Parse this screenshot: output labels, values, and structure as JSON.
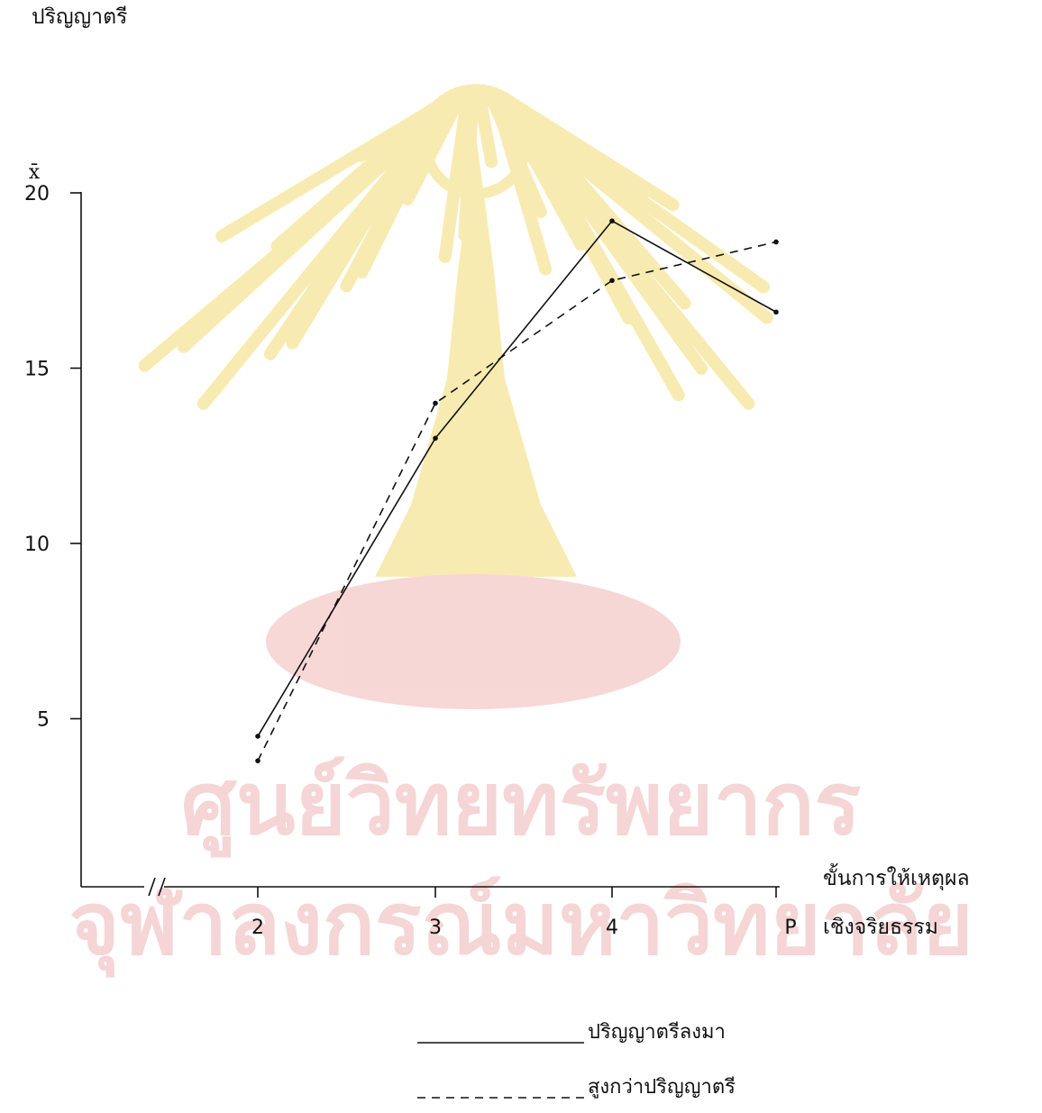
{
  "header_fragment": "ปริญญาตรี",
  "watermark": {
    "line1": "ศูนย์วิทยทรัพยากร",
    "line2": "จุฬาลงกรณ์มหาวิทยาลัย",
    "color": "#e58a8a",
    "emblem_color": "#f3dc74"
  },
  "chart_data": {
    "type": "line",
    "categories": [
      "2",
      "3",
      "4",
      "P"
    ],
    "ylabel": "x̄",
    "xlabel_lines": [
      "ขั้นการให้เหตุผล",
      "เชิงจริยธรรม"
    ],
    "ylim": [
      0,
      20
    ],
    "yticks": [
      5,
      10,
      15,
      20
    ],
    "grid": false,
    "legend_position": "bottom-right",
    "series": [
      {
        "name": "ปริญญาตรีลงมา",
        "style": "solid",
        "values": [
          4.5,
          13.0,
          19.2,
          16.6
        ]
      },
      {
        "name": "สูงกว่าปริญญาตรี",
        "style": "dashed",
        "values": [
          3.8,
          14.0,
          17.5,
          18.6
        ]
      }
    ]
  }
}
